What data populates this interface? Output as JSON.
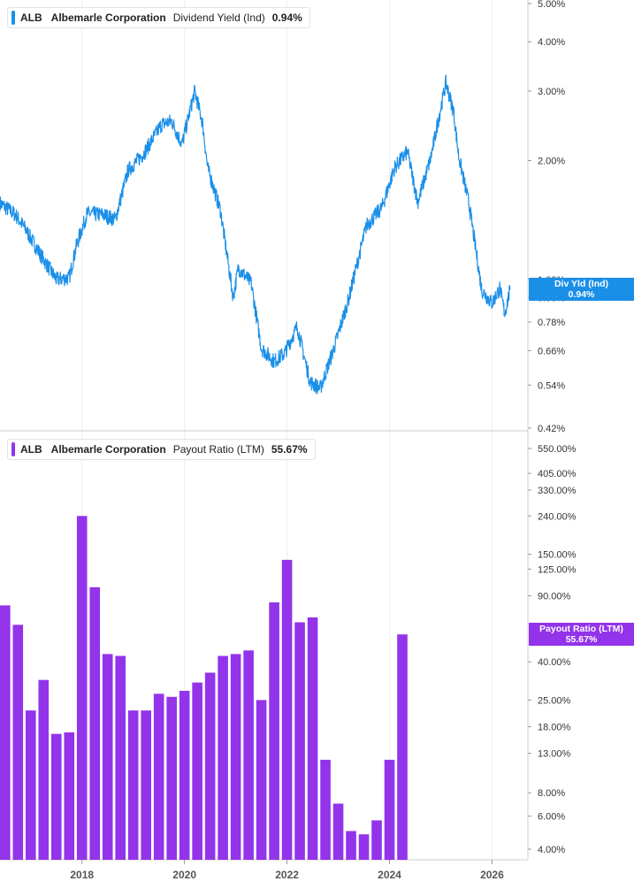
{
  "top_legend": {
    "ticker": "ALB",
    "company": "Albemarle Corporation",
    "metric": "Dividend Yield (Ind)",
    "value": "0.94%"
  },
  "bottom_legend": {
    "ticker": "ALB",
    "company": "Albemarle Corporation",
    "metric": "Payout Ratio (LTM)",
    "value": "55.67%"
  },
  "top_tag": {
    "label": "Div Yld (Ind)",
    "value": "0.94%"
  },
  "bottom_tag": {
    "label": "Payout Ratio (LTM)",
    "value": "55.67%"
  },
  "colors": {
    "yield_line": "#1a8fe8",
    "bars": "#9333ea",
    "grid": "#cccccc"
  },
  "chart_data": [
    {
      "type": "line",
      "series": [
        {
          "name": "Dividend Yield (Ind)"
        }
      ],
      "y_scale": "log",
      "ylim": [
        0.42,
        5.0
      ],
      "y_ticks": [
        "5.00%",
        "4.00%",
        "3.00%",
        "2.00%",
        "1.00%",
        "0.90%",
        "0.78%",
        "0.66%",
        "0.54%",
        "0.42%"
      ],
      "y_tick_values": [
        5.0,
        4.0,
        3.0,
        2.0,
        1.0,
        0.9,
        0.78,
        0.66,
        0.54,
        0.42
      ],
      "x_ticks": [
        "2018",
        "2020",
        "2022",
        "2024",
        "2026"
      ],
      "x_tick_values": [
        2018,
        2020,
        2022,
        2024,
        2026
      ],
      "xlim": [
        2016.4,
        2026.7
      ],
      "x": [
        2016.4,
        2016.7,
        2016.9,
        2017.2,
        2017.5,
        2017.75,
        2017.9,
        2018.1,
        2018.4,
        2018.65,
        2018.9,
        2019.2,
        2019.55,
        2019.75,
        2019.95,
        2020.2,
        2020.35,
        2020.45,
        2020.7,
        2020.95,
        2021.05,
        2021.3,
        2021.5,
        2021.75,
        2021.95,
        2022.2,
        2022.45,
        2022.65,
        2022.9,
        2023.2,
        2023.55,
        2023.85,
        2024.1,
        2024.35,
        2024.55,
        2024.8,
        2025.1,
        2025.25,
        2025.35,
        2025.55,
        2025.8,
        2026.0,
        2026.15,
        2026.25,
        2026.35
      ],
      "y": [
        1.56,
        1.46,
        1.34,
        1.15,
        1.0,
        1.01,
        1.23,
        1.47,
        1.46,
        1.42,
        1.89,
        2.08,
        2.47,
        2.52,
        2.2,
        3.0,
        2.5,
        1.92,
        1.5,
        0.9,
        1.07,
        0.98,
        0.67,
        0.62,
        0.65,
        0.76,
        0.55,
        0.53,
        0.66,
        0.89,
        1.37,
        1.52,
        1.92,
        2.11,
        1.57,
        2.02,
        3.15,
        2.67,
        2.05,
        1.56,
        0.94,
        0.87,
        0.95,
        0.82,
        0.94
      ]
    },
    {
      "type": "bar",
      "series": [
        {
          "name": "Payout Ratio (LTM)"
        }
      ],
      "y_scale": "log",
      "ylim": [
        4.0,
        550.0
      ],
      "y_ticks": [
        "550.00%",
        "405.00%",
        "330.00%",
        "240.00%",
        "150.00%",
        "125.00%",
        "90.00%",
        "40.00%",
        "25.00%",
        "18.00%",
        "13.00%",
        "8.00%",
        "6.00%",
        "4.00%"
      ],
      "y_tick_values": [
        550,
        405,
        330,
        240,
        150,
        125,
        90,
        40,
        25,
        18,
        13,
        8,
        6,
        4
      ],
      "x_ticks": [
        "2018",
        "2020",
        "2022",
        "2024",
        "2026"
      ],
      "x_tick_values": [
        2018,
        2020,
        2022,
        2024,
        2026
      ],
      "xlim": [
        2016.4,
        2026.7
      ],
      "x": [
        2016.5,
        2016.75,
        2017.0,
        2017.25,
        2017.5,
        2017.75,
        2018.0,
        2018.25,
        2018.5,
        2018.75,
        2019.0,
        2019.25,
        2019.5,
        2019.75,
        2020.0,
        2020.25,
        2020.5,
        2020.75,
        2021.0,
        2021.25,
        2021.5,
        2021.75,
        2022.0,
        2022.25,
        2022.5,
        2022.75,
        2023.0,
        2023.25,
        2023.5,
        2023.75,
        2024.0,
        2024.25
      ],
      "values": [
        80,
        63,
        22,
        32,
        16.5,
        16.8,
        240,
        100,
        44,
        43,
        22,
        22,
        27,
        26,
        28,
        31,
        35,
        43,
        44,
        46,
        25,
        83,
        140,
        65,
        69,
        12,
        7,
        5,
        4.8,
        5.7,
        12,
        56
      ]
    }
  ]
}
